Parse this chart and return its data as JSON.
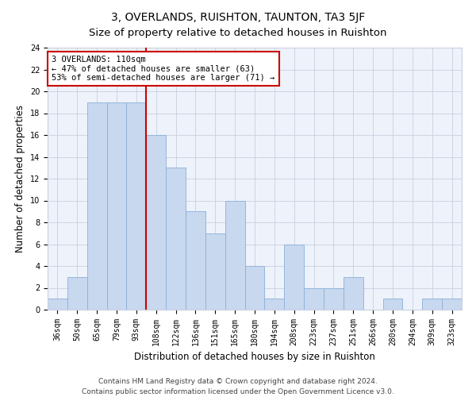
{
  "title": "3, OVERLANDS, RUISHTON, TAUNTON, TA3 5JF",
  "subtitle": "Size of property relative to detached houses in Ruishton",
  "xlabel": "Distribution of detached houses by size in Ruishton",
  "ylabel": "Number of detached properties",
  "bin_labels": [
    "36sqm",
    "50sqm",
    "65sqm",
    "79sqm",
    "93sqm",
    "108sqm",
    "122sqm",
    "136sqm",
    "151sqm",
    "165sqm",
    "180sqm",
    "194sqm",
    "208sqm",
    "223sqm",
    "237sqm",
    "251sqm",
    "266sqm",
    "280sqm",
    "294sqm",
    "309sqm",
    "323sqm"
  ],
  "bar_values": [
    1,
    3,
    19,
    19,
    19,
    16,
    13,
    9,
    7,
    10,
    4,
    1,
    6,
    2,
    2,
    3,
    0,
    1,
    0,
    1,
    1
  ],
  "bar_color": "#c8d8ee",
  "bar_edge_color": "#8ab0d8",
  "marker_line_color": "#cc0000",
  "annotation_text": "3 OVERLANDS: 110sqm\n← 47% of detached houses are smaller (63)\n53% of semi-detached houses are larger (71) →",
  "annotation_box_color": "#ffffff",
  "annotation_box_edge": "#cc0000",
  "ylim": [
    0,
    24
  ],
  "yticks": [
    0,
    2,
    4,
    6,
    8,
    10,
    12,
    14,
    16,
    18,
    20,
    22,
    24
  ],
  "footer": "Contains HM Land Registry data © Crown copyright and database right 2024.\nContains public sector information licensed under the Open Government Licence v3.0.",
  "bg_color": "#ffffff",
  "plot_bg_color": "#eef2fa",
  "grid_color": "#c8d0e0",
  "title_fontsize": 10,
  "subtitle_fontsize": 9.5,
  "axis_label_fontsize": 8.5,
  "tick_fontsize": 7,
  "footer_fontsize": 6.5,
  "annotation_fontsize": 7.5
}
